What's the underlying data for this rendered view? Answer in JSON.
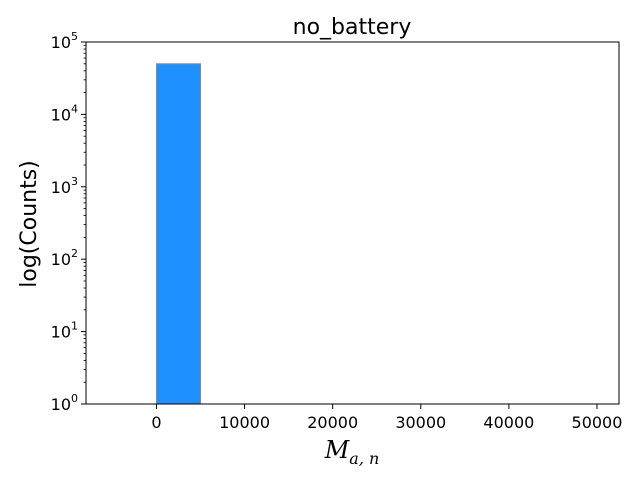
{
  "chart_data": {
    "type": "bar",
    "title": "no_battery",
    "xlabel_main": "M",
    "xlabel_sub": "a, n",
    "ylabel": "log(Counts)",
    "yscale": "log",
    "xlim": [
      -8000,
      52500
    ],
    "ylim": [
      1,
      100000
    ],
    "bar_color": "#1e90ff",
    "bar_edge_color": "#888888",
    "bins": [
      {
        "x0": 0,
        "x1": 5000,
        "count": 50000
      }
    ],
    "x_ticks": [
      {
        "value": 0,
        "label": "0"
      },
      {
        "value": 10000,
        "label": "10000"
      },
      {
        "value": 20000,
        "label": "20000"
      },
      {
        "value": 30000,
        "label": "30000"
      },
      {
        "value": 40000,
        "label": "40000"
      },
      {
        "value": 50000,
        "label": "50000"
      }
    ],
    "y_ticks": [
      {
        "exp": 0,
        "base": "10",
        "sup": "0"
      },
      {
        "exp": 1,
        "base": "10",
        "sup": "1"
      },
      {
        "exp": 2,
        "base": "10",
        "sup": "2"
      },
      {
        "exp": 3,
        "base": "10",
        "sup": "3"
      },
      {
        "exp": 4,
        "base": "10",
        "sup": "4"
      },
      {
        "exp": 5,
        "base": "10",
        "sup": "5"
      }
    ]
  }
}
